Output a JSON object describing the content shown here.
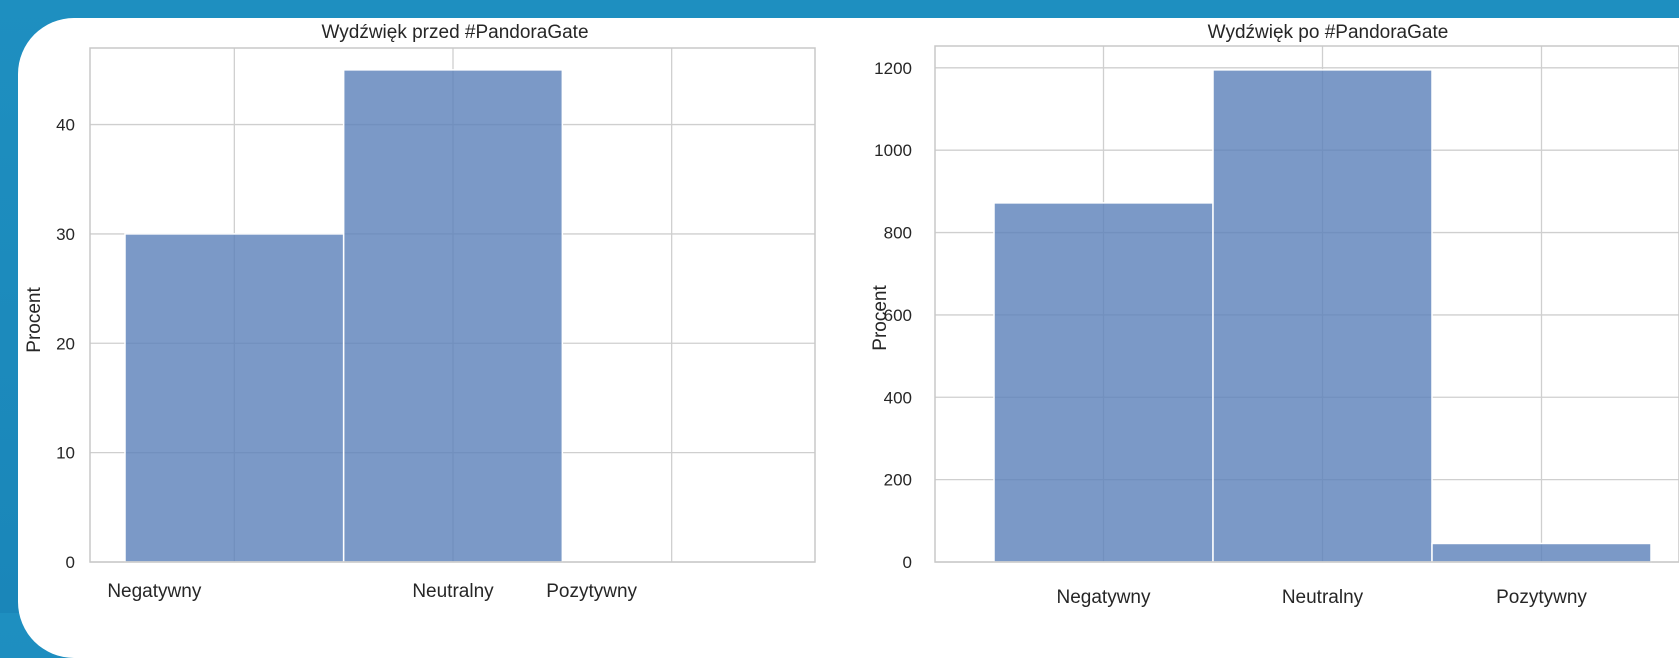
{
  "colors": {
    "bar": "#5a7fb9",
    "grid": "#cfcfcf",
    "frame": "#c8c8c8",
    "text": "#262626",
    "background": "#1e8fc0"
  },
  "chart_data": [
    {
      "type": "bar",
      "title": "Wydźwięk przed #PandoraGate",
      "ylabel": "Procent",
      "xlabel": "",
      "categories": [
        "Negatywny",
        "Neutralny",
        "Pozytywny"
      ],
      "values": [
        30,
        45,
        0
      ],
      "ylim": [
        0,
        47
      ],
      "yticks": [
        0,
        10,
        20,
        30,
        40
      ],
      "grid": true
    },
    {
      "type": "bar",
      "title": "Wydźwięk po #PandoraGate",
      "ylabel": "Procent",
      "xlabel": "",
      "categories": [
        "Negatywny",
        "Neutralny",
        "Pozytywny"
      ],
      "values": [
        872,
        1195,
        45
      ],
      "ylim": [
        0,
        1253
      ],
      "yticks": [
        0,
        200,
        400,
        600,
        800,
        1000,
        1200
      ],
      "grid": true
    }
  ]
}
